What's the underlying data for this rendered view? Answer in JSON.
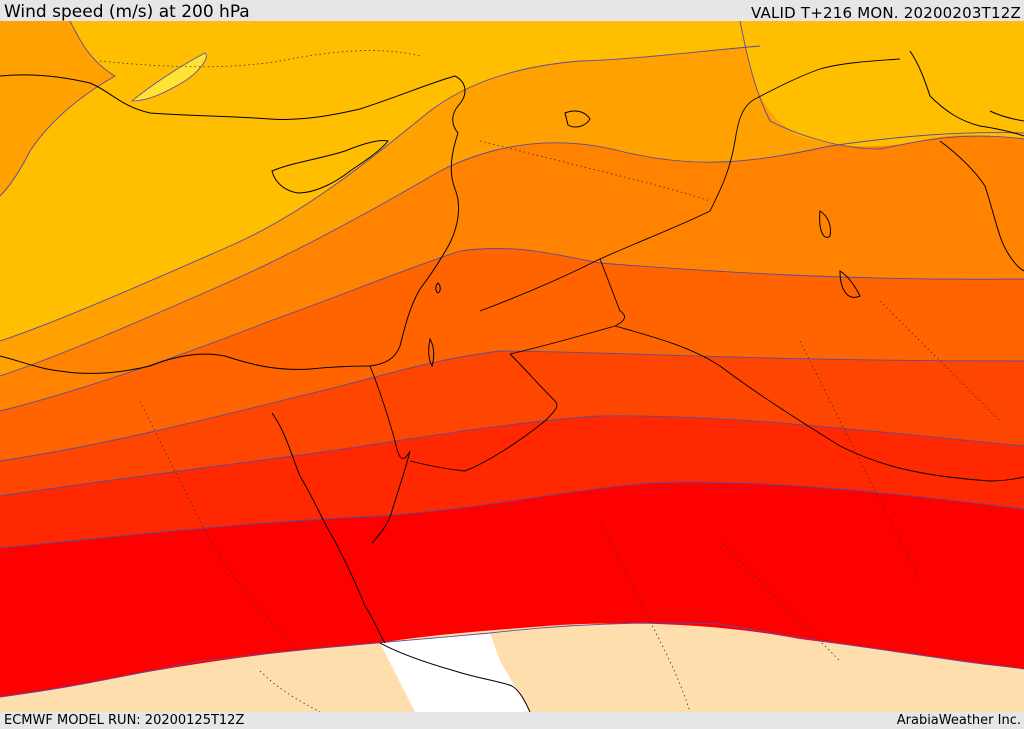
{
  "header": {
    "title": "Wind speed (m/s) at 200 hPa",
    "valid": "VALID T+216 MON. 20200203T12Z"
  },
  "footer": {
    "model_run": "ECMWF MODEL RUN: 20200125T12Z",
    "credit": "ArabiaWeather Inc."
  },
  "map": {
    "field": "wind-speed-200hpa",
    "color_bands": [
      {
        "level": 1,
        "color": "#ffffff"
      },
      {
        "level": 2,
        "color": "#ffdead"
      },
      {
        "level": 3,
        "color": "#ffe335"
      },
      {
        "level": 4,
        "color": "#ffbe00"
      },
      {
        "level": 5,
        "color": "#ffa100"
      },
      {
        "level": 6,
        "color": "#ff8200"
      },
      {
        "level": 7,
        "color": "#ff6400"
      },
      {
        "level": 8,
        "color": "#ff4600"
      },
      {
        "level": 9,
        "color": "#ff2800"
      },
      {
        "level": 10,
        "color": "#ff0000"
      }
    ],
    "contour_color": "#5c4aa0",
    "coastline_color": "#000000",
    "border_style": "dotted"
  }
}
